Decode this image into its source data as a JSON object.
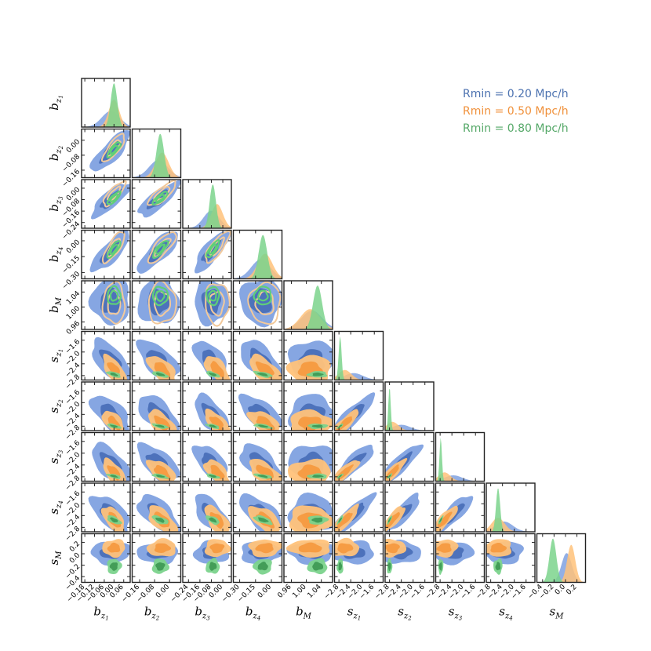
{
  "chart_data": {
    "type": "corner",
    "parameters": [
      {
        "base": "b",
        "sub": "z",
        "subsub": "1",
        "ticks": [
          "-0.18",
          "-0.12",
          "-0.06",
          "0.00",
          "0.06"
        ],
        "range": [
          -0.2,
          0.1
        ]
      },
      {
        "base": "b",
        "sub": "z",
        "subsub": "2",
        "ticks": [
          "-0.16",
          "-0.08",
          "0.00"
        ],
        "range": [
          -0.2,
          0.06
        ]
      },
      {
        "base": "b",
        "sub": "z",
        "subsub": "3",
        "ticks": [
          "-0.24",
          "-0.16",
          "-0.08",
          "0.00"
        ],
        "range": [
          -0.28,
          0.06
        ]
      },
      {
        "base": "b",
        "sub": "z",
        "subsub": "4",
        "ticks": [
          "-0.30",
          "-0.15",
          "0.00"
        ],
        "range": [
          -0.36,
          0.1
        ]
      },
      {
        "base": "b",
        "sub": "M",
        "subsub": "",
        "ticks": [
          "0.96",
          "1.00",
          "1.04"
        ],
        "range": [
          0.94,
          1.07
        ]
      },
      {
        "base": "s",
        "sub": "z",
        "subsub": "1",
        "ticks": [
          "-2.8",
          "-2.4",
          "-2.0",
          "-1.6"
        ],
        "range": [
          -2.95,
          -1.3
        ]
      },
      {
        "base": "s",
        "sub": "z",
        "subsub": "2",
        "ticks": [
          "-2.8",
          "-2.4",
          "-2.0",
          "-1.6"
        ],
        "range": [
          -2.95,
          -1.3
        ]
      },
      {
        "base": "s",
        "sub": "z",
        "subsub": "3",
        "ticks": [
          "-2.8",
          "-2.4",
          "-2.0",
          "-1.6"
        ],
        "range": [
          -2.95,
          -1.3
        ]
      },
      {
        "base": "s",
        "sub": "z",
        "subsub": "4",
        "ticks": [
          "-2.8",
          "-2.4",
          "-2.0",
          "-1.6"
        ],
        "range": [
          -2.95,
          -1.3
        ]
      },
      {
        "base": "s",
        "sub": "M",
        "subsub": "",
        "ticks": [
          "-0.4",
          "-0.2",
          "0.0",
          "0.2"
        ],
        "range": [
          -0.5,
          0.35
        ]
      }
    ],
    "series": [
      {
        "name": "Rmin = 0.20 Mpc/h",
        "color": "#4c72b0",
        "fill_outer": "#7fa1e0",
        "fill_inner": "#4a6fb8",
        "line": "#b7c8ee",
        "mean": [
          -0.02,
          -0.06,
          -0.08,
          -0.1,
          1.015,
          -2.3,
          -2.4,
          -2.35,
          -2.35,
          0.02
        ],
        "sigma": [
          0.055,
          0.05,
          0.055,
          0.09,
          0.028,
          0.32,
          0.3,
          0.3,
          0.3,
          0.09
        ]
      },
      {
        "name": "Rmin = 0.50 Mpc/h",
        "color": "#f0913b",
        "fill_outer": "#ffc27a",
        "fill_inner": "#f59a40",
        "line": "#f2c99b",
        "mean": [
          0.0,
          -0.04,
          -0.04,
          -0.06,
          1.01,
          -2.6,
          -2.7,
          -2.65,
          -2.55,
          0.1
        ],
        "sigma": [
          0.032,
          0.035,
          0.04,
          0.07,
          0.026,
          0.22,
          0.2,
          0.2,
          0.22,
          0.07
        ]
      },
      {
        "name": "Rmin = 0.80 Mpc/h",
        "color": "#55a868",
        "fill_outer": "#7bd38c",
        "fill_inner": "#3f9a55",
        "line": "#5fcf78",
        "mean": [
          0.0,
          -0.05,
          -0.07,
          -0.08,
          1.03,
          -2.76,
          -2.8,
          -2.78,
          -2.55,
          -0.22
        ],
        "sigma": [
          0.02,
          0.02,
          0.022,
          0.04,
          0.012,
          0.05,
          0.04,
          0.04,
          0.07,
          0.06
        ]
      }
    ],
    "legend_position": "top-right",
    "grid": false
  }
}
